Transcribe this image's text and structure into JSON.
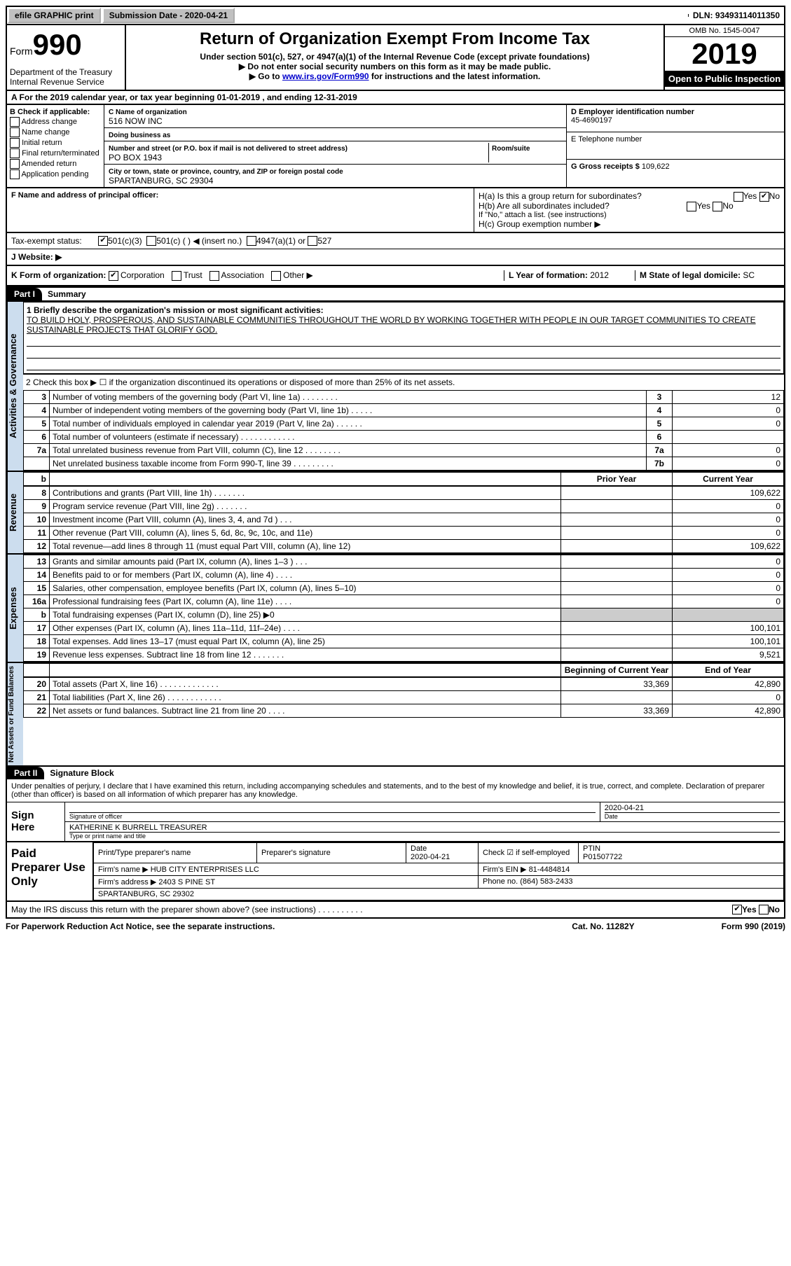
{
  "topbar": {
    "efile": "efile GRAPHIC print",
    "subdate_label": "Submission Date - ",
    "subdate": "2020-04-21",
    "dln_label": "DLN: ",
    "dln": "93493114011350"
  },
  "header": {
    "form_word": "Form",
    "form_num": "990",
    "dept": "Department of the Treasury\nInternal Revenue Service",
    "title": "Return of Organization Exempt From Income Tax",
    "sub1": "Under section 501(c), 527, or 4947(a)(1) of the Internal Revenue Code (except private foundations)",
    "sub2": "▶ Do not enter social security numbers on this form as it may be made public.",
    "sub3_pre": "▶ Go to ",
    "sub3_link": "www.irs.gov/Form990",
    "sub3_post": " for instructions and the latest information.",
    "omb": "OMB No. 1545-0047",
    "year": "2019",
    "open": "Open to Public Inspection"
  },
  "rowA": "A For the 2019 calendar year, or tax year beginning 01-01-2019    , and ending 12-31-2019",
  "boxB": {
    "label": "B Check if applicable:",
    "opts": [
      "Address change",
      "Name change",
      "Initial return",
      "Final return/terminated",
      "Amended return",
      "Application pending"
    ]
  },
  "boxC": {
    "name_lbl": "C Name of organization",
    "name": "516 NOW INC",
    "dba_lbl": "Doing business as",
    "dba": "",
    "addr_lbl": "Number and street (or P.O. box if mail is not delivered to street address)",
    "room_lbl": "Room/suite",
    "addr": "PO BOX 1943",
    "city_lbl": "City or town, state or province, country, and ZIP or foreign postal code",
    "city": "SPARTANBURG, SC  29304"
  },
  "boxD": {
    "lbl": "D Employer identification number",
    "val": "45-4690197"
  },
  "boxE": {
    "lbl": "E Telephone number",
    "val": ""
  },
  "boxG": {
    "lbl": "G Gross receipts $ ",
    "val": "109,622"
  },
  "boxF": {
    "lbl": "F  Name and address of principal officer:",
    "val": ""
  },
  "boxH": {
    "a": "H(a)  Is this a group return for subordinates?",
    "b": "H(b)  Are all subordinates included?",
    "note": "If \"No,\" attach a list. (see instructions)",
    "c": "H(c)  Group exemption number ▶"
  },
  "tax_status": {
    "lbl": "Tax-exempt status:",
    "o1": "501(c)(3)",
    "o2": "501(c) (   ) ◀ (insert no.)",
    "o3": "4947(a)(1) or",
    "o4": "527"
  },
  "website": {
    "lbl": "J Website: ▶",
    "val": ""
  },
  "rowK": {
    "lbl": "K Form of organization:",
    "opts": [
      "Corporation",
      "Trust",
      "Association",
      "Other ▶"
    ],
    "L_lbl": "L Year of formation: ",
    "L_val": "2012",
    "M_lbl": "M State of legal domicile: ",
    "M_val": "SC"
  },
  "part1": {
    "tag": "Part I",
    "title": "Summary",
    "q1_lbl": "1  Briefly describe the organization's mission or most significant activities:",
    "q1_val": "TO BUILD HOLY, PROSPEROUS, AND SUSTAINABLE COMMUNITIES THROUGHOUT THE WORLD BY WORKING TOGETHER WITH PEOPLE IN OUR TARGET COMMUNITIES TO CREATE SUSTAINABLE PROJECTS THAT GLORIFY GOD.",
    "q2": "2   Check this box ▶ ☐  if the organization discontinued its operations or disposed of more than 25% of its net assets.",
    "lines_ag": [
      {
        "n": "3",
        "t": "Number of voting members of the governing body (Part VI, line 1a)  .    .    .    .    .    .    .    .",
        "b": "3",
        "v": "12"
      },
      {
        "n": "4",
        "t": "Number of independent voting members of the governing body (Part VI, line 1b)  .    .    .    .    .",
        "b": "4",
        "v": "0"
      },
      {
        "n": "5",
        "t": "Total number of individuals employed in calendar year 2019 (Part V, line 2a)  .    .    .    .    .    .",
        "b": "5",
        "v": "0"
      },
      {
        "n": "6",
        "t": "Total number of volunteers (estimate if necessary)    .    .    .    .    .    .    .    .    .    .    .    .",
        "b": "6",
        "v": ""
      },
      {
        "n": "7a",
        "t": "Total unrelated business revenue from Part VIII, column (C), line 12  .    .    .    .    .    .    .    .",
        "b": "7a",
        "v": "0"
      },
      {
        "n": "",
        "t": "Net unrelated business taxable income from Form 990-T, line 39   .    .    .    .    .    .    .    .    .",
        "b": "7b",
        "v": "0"
      }
    ],
    "hdr_b": "b",
    "hdr_prior": "Prior Year",
    "hdr_curr": "Current Year",
    "lines_rev": [
      {
        "n": "8",
        "t": "Contributions and grants (Part VIII, line 1h)   .    .    .    .    .    .    .",
        "p": "",
        "c": "109,622"
      },
      {
        "n": "9",
        "t": "Program service revenue (Part VIII, line 2g)   .    .    .    .    .    .    .",
        "p": "",
        "c": "0"
      },
      {
        "n": "10",
        "t": "Investment income (Part VIII, column (A), lines 3, 4, and 7d )    .    .    .",
        "p": "",
        "c": "0"
      },
      {
        "n": "11",
        "t": "Other revenue (Part VIII, column (A), lines 5, 6d, 8c, 9c, 10c, and 11e)",
        "p": "",
        "c": "0"
      },
      {
        "n": "12",
        "t": "Total revenue—add lines 8 through 11 (must equal Part VIII, column (A), line 12)",
        "p": "",
        "c": "109,622"
      }
    ],
    "lines_exp": [
      {
        "n": "13",
        "t": "Grants and similar amounts paid (Part IX, column (A), lines 1–3 )  .    .    .",
        "p": "",
        "c": "0"
      },
      {
        "n": "14",
        "t": "Benefits paid to or for members (Part IX, column (A), line 4)  .    .    .    .",
        "p": "",
        "c": "0"
      },
      {
        "n": "15",
        "t": "Salaries, other compensation, employee benefits (Part IX, column (A), lines 5–10)",
        "p": "",
        "c": "0"
      },
      {
        "n": "16a",
        "t": "Professional fundraising fees (Part IX, column (A), line 11e)   .    .    .    .",
        "p": "",
        "c": "0"
      },
      {
        "n": "b",
        "t": "Total fundraising expenses (Part IX, column (D), line 25) ▶0",
        "p": "shade",
        "c": "shade"
      },
      {
        "n": "17",
        "t": "Other expenses (Part IX, column (A), lines 11a–11d, 11f–24e)   .    .    .    .",
        "p": "",
        "c": "100,101"
      },
      {
        "n": "18",
        "t": "Total expenses. Add lines 13–17 (must equal Part IX, column (A), line 25)",
        "p": "",
        "c": "100,101"
      },
      {
        "n": "19",
        "t": "Revenue less expenses. Subtract line 18 from line 12  .    .    .    .    .    .    .",
        "p": "",
        "c": "9,521"
      }
    ],
    "hdr_beg": "Beginning of Current Year",
    "hdr_end": "End of Year",
    "lines_net": [
      {
        "n": "20",
        "t": "Total assets (Part X, line 16)  .    .    .    .    .    .    .    .    .    .    .    .    .",
        "p": "33,369",
        "c": "42,890"
      },
      {
        "n": "21",
        "t": "Total liabilities (Part X, line 26)  .    .    .    .    .    .    .    .    .    .    .    .",
        "p": "",
        "c": "0"
      },
      {
        "n": "22",
        "t": "Net assets or fund balances. Subtract line 21 from line 20   .    .    .    .",
        "p": "33,369",
        "c": "42,890"
      }
    ],
    "side_ag": "Activities & Governance",
    "side_rev": "Revenue",
    "side_exp": "Expenses",
    "side_net": "Net Assets or Fund Balances"
  },
  "part2": {
    "tag": "Part II",
    "title": "Signature Block",
    "decl": "Under penalties of perjury, I declare that I have examined this return, including accompanying schedules and statements, and to the best of my knowledge and belief, it is true, correct, and complete. Declaration of preparer (other than officer) is based on all information of which preparer has any knowledge.",
    "sign_here": "Sign Here",
    "sig_officer_lbl": "Signature of officer",
    "sig_officer_name": "KATHERINE K BURRELL  TREASURER",
    "sig_officer_type": "Type or print name and title",
    "date_lbl": "Date",
    "date": "2020-04-21",
    "paid": "Paid Preparer Use Only",
    "prep_name_lbl": "Print/Type preparer's name",
    "prep_sig_lbl": "Preparer's signature",
    "prep_date_lbl": "Date",
    "prep_date": "2020-04-21",
    "self_emp": "Check ☑ if self-employed",
    "ptin_lbl": "PTIN",
    "ptin": "P01507722",
    "firm_name_lbl": "Firm's name    ▶ ",
    "firm_name": "HUB CITY ENTERPRISES LLC",
    "firm_ein_lbl": "Firm's EIN ▶ ",
    "firm_ein": "81-4484814",
    "firm_addr_lbl": "Firm's address ▶ ",
    "firm_addr1": "2403 S PINE ST",
    "firm_addr2": "SPARTANBURG, SC  29302",
    "phone_lbl": "Phone no. ",
    "phone": "(864) 583-2433",
    "discuss": "May the IRS discuss this return with the preparer shown above? (see instructions)    .    .    .    .    .    .    .    .    .    .",
    "yes": "Yes",
    "no": "No"
  },
  "paperwork": {
    "left": "For Paperwork Reduction Act Notice, see the separate instructions.",
    "mid": "Cat. No. 11282Y",
    "right": "Form 990 (2019)"
  }
}
